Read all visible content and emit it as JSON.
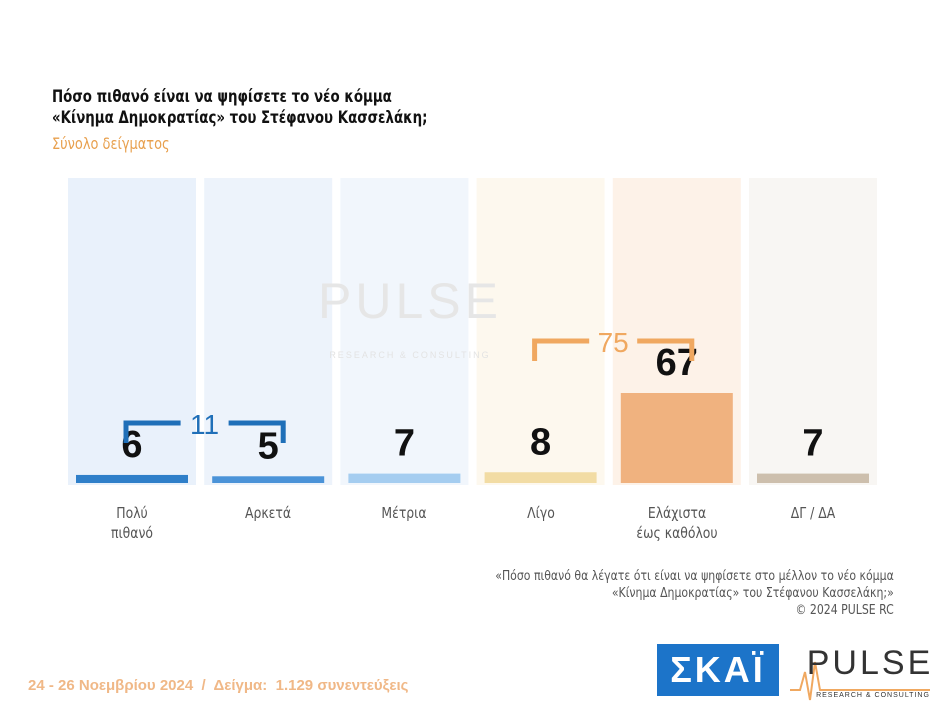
{
  "chart_data": {
    "type": "bar",
    "title": "Πόσο πιθανό είναι να ψηφίσετε το νέο κόμμα\n«Κίνημα Δημοκρατίας» του Στέφανου Κασσελάκη;",
    "subtitle": "Σύνολο δείγματος",
    "categories": [
      "Πολύ\nπιθανό",
      "Αρκετά",
      "Μέτρια",
      "Λίγο",
      "Ελάχιστα\nέως καθόλου",
      "ΔΓ / ΔΑ"
    ],
    "values": [
      6,
      5,
      7,
      8,
      67,
      7
    ],
    "colors": [
      "#2f7fc9",
      "#4b93d8",
      "#a5cdf0",
      "#f2dca4",
      "#f0b27f",
      "#cdbfad"
    ],
    "panel_colors": [
      "#e9f1fb",
      "#edf3fb",
      "#f1f6fc",
      "#fdf8ee",
      "#fdf2e8",
      "#f8f6f3"
    ],
    "brackets": [
      {
        "label": 11,
        "color": "#1f6fb8"
      },
      {
        "label": 75,
        "color": "#f0a860"
      }
    ],
    "note": "«Πόσο πιθανό θα λέγατε ότι είναι να ψηφίσετε στο μέλλον το νέο κόμμα\n«Κίνημα Δημοκρατίας» του Στέφανου Κασσελάκη;»",
    "copyright": "©  2024  PULSE RC",
    "footer": "24 - 26 Νοεμβρίου 2024  /  Δείγμα:  1.129 συνεντεύξεις",
    "watermark": "PULSE",
    "watermark_sub": "RESEARCH & CONSULTING",
    "logo_skai": "ΣΚΑΪ",
    "logo_pulse": "PULSE",
    "logo_pulse_sub": "RESEARCH & CONSULTING"
  }
}
